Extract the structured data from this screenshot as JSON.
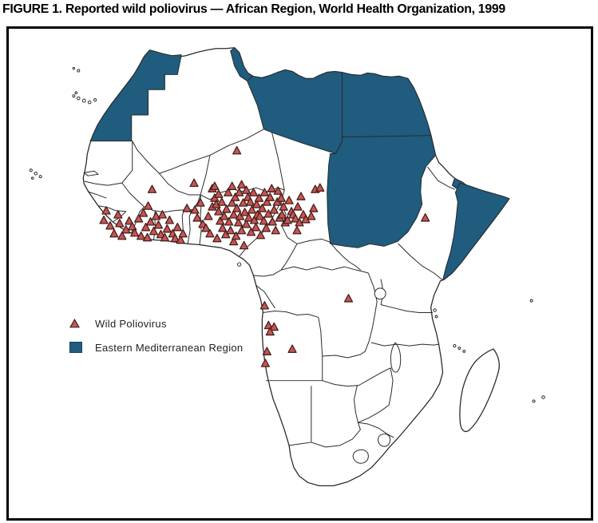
{
  "figure": {
    "title": "FIGURE 1. Reported wild poliovirus — African Region, World Health Organization, 1999"
  },
  "legend": {
    "items": [
      {
        "label": "Wild Poliovirus",
        "marker": "triangle"
      },
      {
        "label": "Eastern Mediterranean Region",
        "marker": "square"
      }
    ]
  },
  "colors": {
    "emro_fill": "#1f5c7e",
    "marker_fill": "#c95454",
    "marker_stroke": "#45201c",
    "border": "#2a2a2a"
  },
  "map": {
    "region_shown": "Africa",
    "emro_countries_shaded": [
      "Morocco/Western Sahara",
      "Tunisia",
      "Libya",
      "Egypt",
      "Sudan",
      "Djibouti",
      "Somalia"
    ],
    "markers": {
      "meaning": "wild poliovirus case location",
      "shape": "triangle",
      "points": [
        [
          128,
          275
        ],
        [
          131,
          263
        ],
        [
          136,
          282
        ],
        [
          141,
          292
        ],
        [
          146,
          268
        ],
        [
          148,
          279
        ],
        [
          151,
          295
        ],
        [
          156,
          287
        ],
        [
          160,
          276
        ],
        [
          164,
          283
        ],
        [
          167,
          291
        ],
        [
          172,
          273
        ],
        [
          175,
          295
        ],
        [
          178,
          266
        ],
        [
          181,
          284
        ],
        [
          183,
          297
        ],
        [
          184,
          257
        ],
        [
          187,
          277
        ],
        [
          189,
          236
        ],
        [
          191,
          289
        ],
        [
          194,
          270
        ],
        [
          197,
          281
        ],
        [
          200,
          293
        ],
        [
          202,
          268
        ],
        [
          205,
          297
        ],
        [
          208,
          286
        ],
        [
          211,
          275
        ],
        [
          215,
          292
        ],
        [
          218,
          298
        ],
        [
          221,
          284
        ],
        [
          225,
          300
        ],
        [
          228,
          292
        ],
        [
          233,
          260
        ],
        [
          242,
          228
        ],
        [
          250,
          253
        ],
        [
          243,
          262
        ],
        [
          246,
          272
        ],
        [
          253,
          280
        ],
        [
          257,
          285
        ],
        [
          260,
          270
        ],
        [
          262,
          292
        ],
        [
          265,
          235
        ],
        [
          265,
          258
        ],
        [
          268,
          232
        ],
        [
          268,
          247
        ],
        [
          270,
          255
        ],
        [
          271,
          298
        ],
        [
          273,
          242
        ],
        [
          273,
          264
        ],
        [
          275,
          276
        ],
        [
          277,
          252
        ],
        [
          278,
          285
        ],
        [
          280,
          270
        ],
        [
          282,
          293
        ],
        [
          283,
          261
        ],
        [
          285,
          240
        ],
        [
          286,
          277
        ],
        [
          288,
          288
        ],
        [
          290,
          232
        ],
        [
          290,
          253
        ],
        [
          292,
          268
        ],
        [
          292,
          302
        ],
        [
          294,
          246
        ],
        [
          295,
          295
        ],
        [
          296,
          260
        ],
        [
          298,
          278
        ],
        [
          299,
          240
        ],
        [
          300,
          270
        ],
        [
          302,
          230
        ],
        [
          302,
          288
        ],
        [
          304,
          253
        ],
        [
          305,
          307
        ],
        [
          306,
          265
        ],
        [
          308,
          237
        ],
        [
          308,
          280
        ],
        [
          310,
          246
        ],
        [
          311,
          272
        ],
        [
          313,
          252
        ],
        [
          314,
          290
        ],
        [
          315,
          262
        ],
        [
          317,
          240
        ],
        [
          318,
          275
        ],
        [
          320,
          284
        ],
        [
          321,
          255
        ],
        [
          322,
          268
        ],
        [
          324,
          247
        ],
        [
          325,
          270
        ],
        [
          326,
          294
        ],
        [
          328,
          260
        ],
        [
          330,
          276
        ],
        [
          331,
          240
        ],
        [
          333,
          285
        ],
        [
          334,
          252
        ],
        [
          336,
          267
        ],
        [
          338,
          246
        ],
        [
          340,
          235
        ],
        [
          341,
          277
        ],
        [
          343,
          262
        ],
        [
          345,
          288
        ],
        [
          347,
          252
        ],
        [
          348,
          238
        ],
        [
          350,
          272
        ],
        [
          352,
          247
        ],
        [
          353,
          268
        ],
        [
          355,
          258
        ],
        [
          357,
          278
        ],
        [
          360,
          275
        ],
        [
          362,
          250
        ],
        [
          365,
          264
        ],
        [
          367,
          268
        ],
        [
          370,
          273
        ],
        [
          372,
          288
        ],
        [
          373,
          258
        ],
        [
          375,
          278
        ],
        [
          377,
          245
        ],
        [
          380,
          268
        ],
        [
          383,
          274
        ],
        [
          393,
          260
        ],
        [
          395,
          236
        ],
        [
          401,
          234
        ],
        [
          296,
          187
        ],
        [
          534,
          272
        ],
        [
          437,
          374
        ],
        [
          390,
          270
        ],
        [
          331,
          383
        ],
        [
          336,
          408
        ],
        [
          343,
          410
        ],
        [
          338,
          416
        ],
        [
          334,
          441
        ],
        [
          366,
          438
        ],
        [
          332,
          456
        ]
      ]
    }
  }
}
